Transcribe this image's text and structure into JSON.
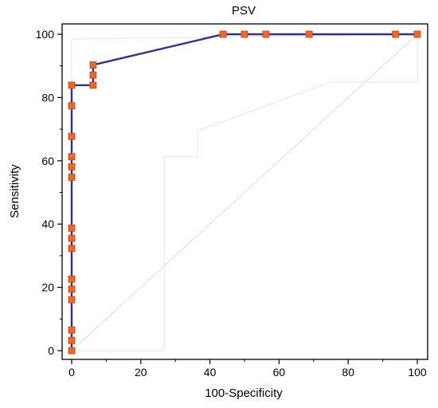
{
  "chart_data": {
    "type": "line",
    "title": "PSV",
    "xlabel": "100-Specificity",
    "ylabel": "Sensitivity",
    "xlim": [
      0,
      100
    ],
    "ylim": [
      0,
      100
    ],
    "xticks": [
      "0",
      "20",
      "40",
      "60",
      "80",
      "100"
    ],
    "yticks": [
      "0",
      "20",
      "40",
      "60",
      "80",
      "100"
    ],
    "grid": false,
    "series": [
      {
        "role": "roc-curve",
        "color": "#2e3192",
        "marker_color": "#f26522",
        "x": [
          0,
          0,
          0,
          0,
          0,
          0,
          0,
          0,
          0,
          0,
          0,
          0,
          0,
          0,
          0,
          0,
          0,
          0,
          6.2,
          6.2,
          6.2,
          43.8,
          50,
          56.2,
          68.7,
          93.7,
          100
        ],
        "y": [
          0,
          3.2,
          6.5,
          16.1,
          19.4,
          22.6,
          32.3,
          35.5,
          38.7,
          54.8,
          58.1,
          61.3,
          67.7,
          77.4,
          83.9,
          83.9,
          83.9,
          83.9,
          83.9,
          87.1,
          90.3,
          100,
          100,
          100,
          100,
          100,
          100
        ],
        "markers": [
          [
            0,
            0
          ],
          [
            0,
            3.2
          ],
          [
            0,
            6.5
          ],
          [
            0,
            16.1
          ],
          [
            0,
            19.4
          ],
          [
            0,
            22.6
          ],
          [
            0,
            32.3
          ],
          [
            0,
            35.5
          ],
          [
            0,
            38.7
          ],
          [
            0,
            54.8
          ],
          [
            0,
            58.1
          ],
          [
            0,
            61.3
          ],
          [
            0,
            67.7
          ],
          [
            0,
            77.4
          ],
          [
            0,
            83.9
          ],
          [
            6.2,
            83.9
          ],
          [
            6.2,
            87.1
          ],
          [
            6.2,
            90.3
          ],
          [
            43.8,
            100
          ],
          [
            50,
            100
          ],
          [
            56.2,
            100
          ],
          [
            68.7,
            100
          ],
          [
            93.7,
            100
          ],
          [
            100,
            100
          ]
        ]
      },
      {
        "role": "reference-diagonal",
        "color": "#dddddd",
        "x": [
          0,
          100
        ],
        "y": [
          0,
          100
        ]
      },
      {
        "role": "confidence-upper",
        "color": "#e6e6e6",
        "x": [
          0,
          0,
          100
        ],
        "y": [
          0,
          98.5,
          100
        ]
      },
      {
        "role": "confidence-lower",
        "color": "#e6e6e6",
        "x": [
          0,
          26.8,
          26.8,
          36.5,
          36.5,
          75,
          100,
          100
        ],
        "y": [
          0,
          0,
          61.3,
          61.3,
          69.5,
          84.9,
          84.9,
          100
        ]
      }
    ]
  }
}
